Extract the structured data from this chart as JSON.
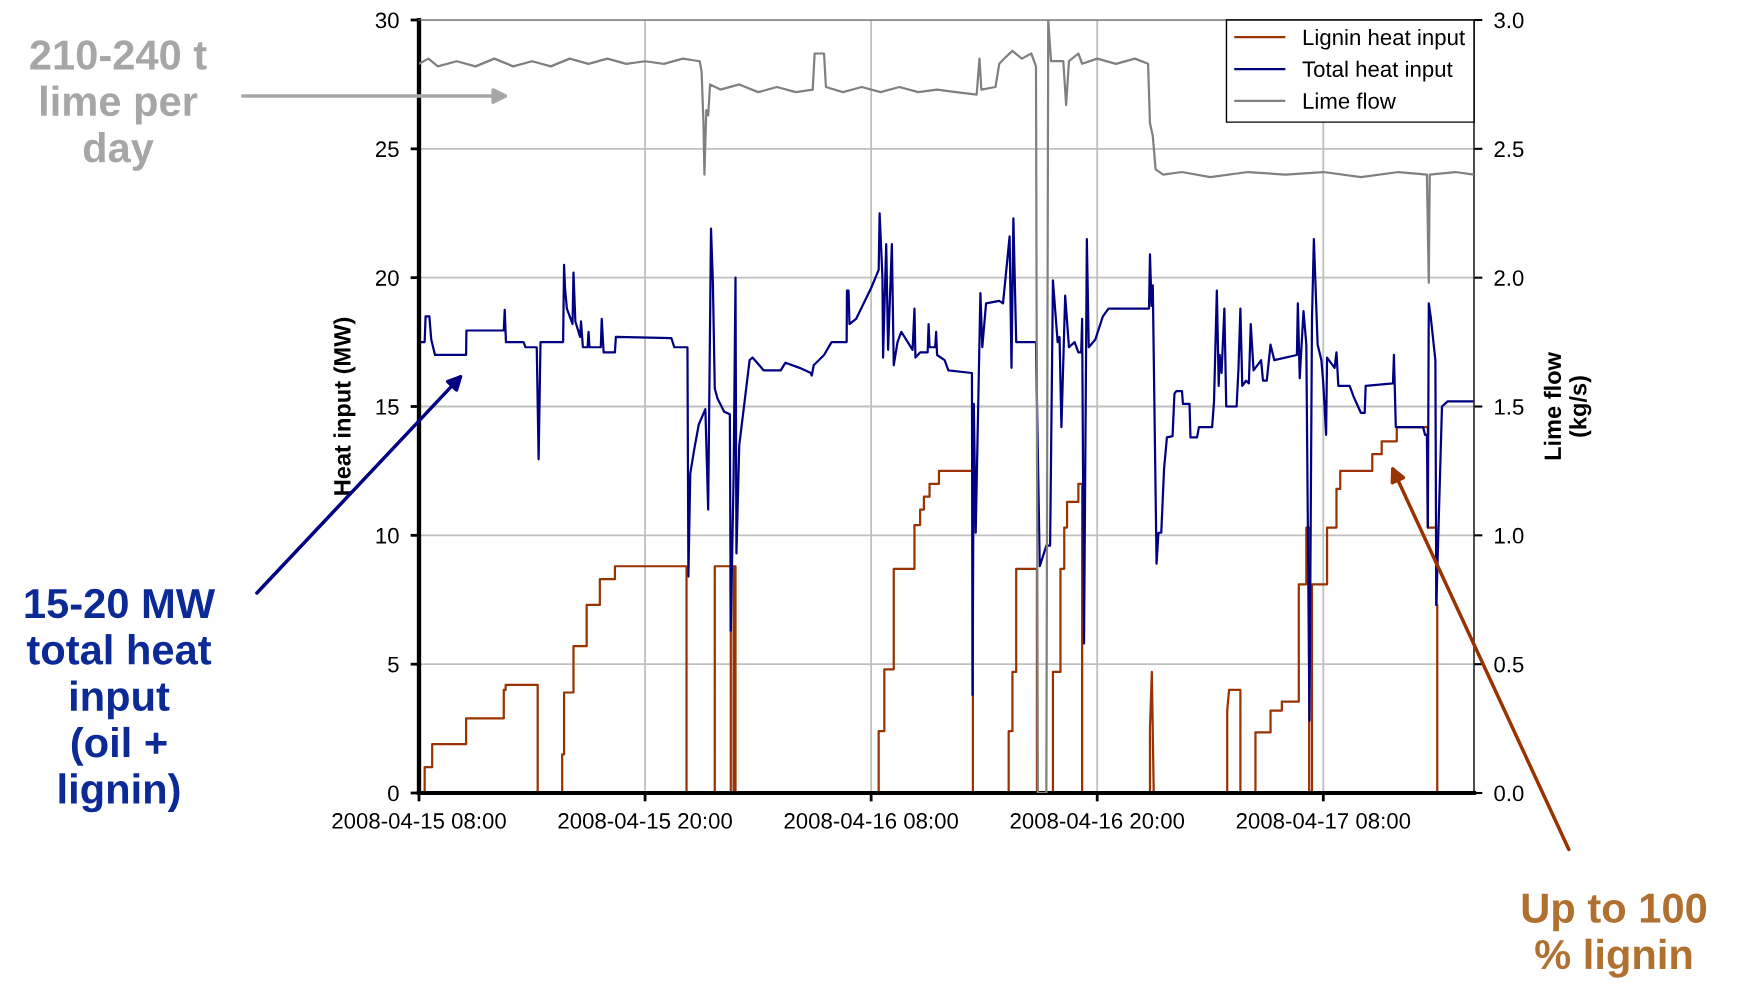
{
  "chart_data": {
    "type": "line",
    "ylabel": "Heat input (MW)",
    "y2label": "Lime flow\n(kg/s)",
    "xlim": [
      "2008-04-15T08:00",
      "2008-04-17T16:00"
    ],
    "xticks": [
      {
        "value": "2008-04-15T08:00",
        "label": "2008-04-15 08:00"
      },
      {
        "value": "2008-04-15T20:00",
        "label": "2008-04-15 20:00"
      },
      {
        "value": "2008-04-16T08:00",
        "label": "2008-04-16 08:00"
      },
      {
        "value": "2008-04-16T20:00",
        "label": "2008-04-16 20:00"
      },
      {
        "value": "2008-04-17T08:00",
        "label": "2008-04-17 08:00"
      }
    ],
    "ylim": [
      0,
      30
    ],
    "yticks": [
      0,
      5,
      10,
      15,
      20,
      25,
      30
    ],
    "y2lim": [
      0,
      3
    ],
    "y2ticks": [
      {
        "value": 0,
        "label": "0.0"
      },
      {
        "value": 0.5,
        "label": "0.5"
      },
      {
        "value": 1,
        "label": "1.0"
      },
      {
        "value": 1.5,
        "label": "1.5"
      },
      {
        "value": 2,
        "label": "2.0"
      },
      {
        "value": 2.5,
        "label": "2.5"
      },
      {
        "value": 3,
        "label": "3.0"
      }
    ],
    "grid": true,
    "legend": "top right",
    "marker": "none",
    "line_style": "solid",
    "annotations": [
      "210-240 t\nlime per\nday",
      "15-20 MW\ntotal heat\ninput\n(oil +\nlignin)",
      "Up to 100\n% lignin"
    ],
    "series": [
      {
        "name": "Lignin heat input",
        "color": "#993300",
        "x": [
          "2008-04-15T08:00",
          "2008-04-15T08:18",
          "2008-04-15T08:18",
          "2008-04-15T08:42",
          "2008-04-15T08:42",
          "2008-04-15T10:30",
          "2008-04-15T10:30",
          "2008-04-15T12:30",
          "2008-04-15T12:30",
          "2008-04-15T12:36",
          "2008-04-15T12:36",
          "2008-04-15T14:18",
          "2008-04-15T14:18",
          "2008-04-15T15:36",
          "2008-04-15T15:36",
          "2008-04-15T15:42",
          "2008-04-15T15:42",
          "2008-04-15T16:12",
          "2008-04-15T16:12",
          "2008-04-15T16:54",
          "2008-04-15T16:54",
          "2008-04-15T17:36",
          "2008-04-15T17:36",
          "2008-04-15T18:24",
          "2008-04-15T18:24",
          "2008-04-15T22:12",
          "2008-04-15T22:12",
          "2008-04-15T23:42",
          "2008-04-15T23:42",
          "2008-04-16T00:33",
          "2008-04-16T00:33",
          "2008-04-16T00:42",
          "2008-04-16T00:42",
          "2008-04-16T00:48",
          "2008-04-16T00:48",
          "2008-04-16T08:24",
          "2008-04-16T08:24",
          "2008-04-16T08:42",
          "2008-04-16T08:42",
          "2008-04-16T09:12",
          "2008-04-16T09:12",
          "2008-04-16T10:18",
          "2008-04-16T10:18",
          "2008-04-16T10:36",
          "2008-04-16T10:36",
          "2008-04-16T10:48",
          "2008-04-16T10:48",
          "2008-04-16T11:06",
          "2008-04-16T11:06",
          "2008-04-16T11:36",
          "2008-04-16T11:36",
          "2008-04-16T13:24",
          "2008-04-16T13:24",
          "2008-04-16T15:18",
          "2008-04-16T15:18",
          "2008-04-16T15:30",
          "2008-04-16T15:30",
          "2008-04-16T15:42",
          "2008-04-16T15:42",
          "2008-04-16T16:48",
          "2008-04-16T16:48",
          "2008-04-16T17:39",
          "2008-04-16T17:39",
          "2008-04-16T18:03",
          "2008-04-16T18:03",
          "2008-04-16T18:15",
          "2008-04-16T18:15",
          "2008-04-16T18:24",
          "2008-04-16T18:24",
          "2008-04-16T19:00",
          "2008-04-16T19:00",
          "2008-04-16T19:12",
          "2008-04-16T19:12",
          "2008-04-16T22:48",
          "2008-04-16T22:48",
          "2008-04-16T22:54",
          "2008-04-16T23:00",
          "2008-04-17T02:54",
          "2008-04-17T02:54",
          "2008-04-17T03:00",
          "2008-04-17T03:36",
          "2008-04-17T03:36",
          "2008-04-17T04:24",
          "2008-04-17T04:24",
          "2008-04-17T05:12",
          "2008-04-17T05:12",
          "2008-04-17T05:48",
          "2008-04-17T05:48",
          "2008-04-17T06:42",
          "2008-04-17T06:42",
          "2008-04-17T07:06",
          "2008-04-17T07:06",
          "2008-04-17T07:15",
          "2008-04-17T07:15",
          "2008-04-17T07:24",
          "2008-04-17T07:24",
          "2008-04-17T08:12",
          "2008-04-17T08:12",
          "2008-04-17T08:42",
          "2008-04-17T08:42",
          "2008-04-17T08:54",
          "2008-04-17T08:54",
          "2008-04-17T10:36",
          "2008-04-17T10:36",
          "2008-04-17T11:06",
          "2008-04-17T11:06",
          "2008-04-17T11:54",
          "2008-04-17T11:54",
          "2008-04-17T13:33",
          "2008-04-17T13:33",
          "2008-04-17T14:00",
          "2008-04-17T14:00",
          "2008-04-17T14:03",
          "2008-04-17T14:03",
          "2008-04-17T16:00"
        ],
        "values": [
          0,
          0,
          1.0,
          1.0,
          1.9,
          1.9,
          2.9,
          2.9,
          4.0,
          4.0,
          4.2,
          4.2,
          0,
          0,
          1.5,
          1.5,
          3.9,
          3.9,
          5.7,
          5.7,
          7.3,
          7.3,
          8.3,
          8.3,
          8.8,
          8.8,
          0,
          0,
          8.8,
          8.8,
          0,
          0,
          8.8,
          8.8,
          0,
          0,
          2.4,
          2.4,
          4.8,
          4.8,
          8.7,
          8.7,
          10.4,
          10.4,
          11.0,
          11.0,
          11.5,
          11.5,
          12.0,
          12.0,
          12.5,
          12.5,
          0,
          0,
          2.4,
          2.4,
          4.7,
          4.7,
          8.7,
          8.7,
          0,
          0,
          4.7,
          4.7,
          8.7,
          8.7,
          10.3,
          10.3,
          11.3,
          11.3,
          12.0,
          12.0,
          0,
          0,
          2.5,
          4.7,
          0,
          0,
          3.2,
          4.0,
          4.0,
          0,
          0,
          2.35,
          2.35,
          3.2,
          3.2,
          3.55,
          3.55,
          8.1,
          8.1,
          10.3,
          10.3,
          0,
          0,
          8.1,
          8.1,
          10.3,
          10.3,
          11.8,
          11.8,
          12.5,
          12.5,
          13.15,
          13.15,
          13.65,
          13.65,
          14.2,
          14.2,
          10.3,
          10.3,
          7.3,
          7.3,
          0,
          0
        ]
      },
      {
        "name": "Total heat input",
        "color": "#000080",
        "x": [
          "2008-04-15T08:00",
          "2008-04-15T08:18",
          "2008-04-15T08:21",
          "2008-04-15T08:33",
          "2008-04-15T08:39",
          "2008-04-15T08:51",
          "2008-04-15T10:30",
          "2008-04-15T10:31",
          "2008-04-15T12:30",
          "2008-04-15T12:33",
          "2008-04-15T12:37",
          "2008-04-15T13:33",
          "2008-04-15T13:39",
          "2008-04-15T14:15",
          "2008-04-15T14:21",
          "2008-04-15T14:27",
          "2008-04-15T15:39",
          "2008-04-15T15:42",
          "2008-04-15T15:45",
          "2008-04-15T15:51",
          "2008-04-15T16:09",
          "2008-04-15T16:12",
          "2008-04-15T16:18",
          "2008-04-15T16:33",
          "2008-04-15T16:36",
          "2008-04-15T16:42",
          "2008-04-15T16:57",
          "2008-04-15T17:00",
          "2008-04-15T17:03",
          "2008-04-15T17:39",
          "2008-04-15T17:42",
          "2008-04-15T17:48",
          "2008-04-15T18:24",
          "2008-04-15T18:27",
          "2008-04-15T21:24",
          "2008-04-15T21:33",
          "2008-04-15T22:15",
          "2008-04-15T22:18",
          "2008-04-15T22:24",
          "2008-04-15T22:36",
          "2008-04-15T22:51",
          "2008-04-15T23:12",
          "2008-04-15T23:21",
          "2008-04-15T23:30",
          "2008-04-15T23:36",
          "2008-04-15T23:42",
          "2008-04-15T23:51",
          "2008-04-16T00:12",
          "2008-04-16T00:30",
          "2008-04-16T00:33",
          "2008-04-16T00:42",
          "2008-04-16T00:48",
          "2008-04-16T00:51",
          "2008-04-16T01:00",
          "2008-04-16T01:18",
          "2008-04-16T01:33",
          "2008-04-16T01:42",
          "2008-04-16T01:57",
          "2008-04-16T02:18",
          "2008-04-16T03:12",
          "2008-04-16T03:27",
          "2008-04-16T04:12",
          "2008-04-16T04:48",
          "2008-04-16T04:51",
          "2008-04-16T04:57",
          "2008-04-16T05:30",
          "2008-04-16T05:54",
          "2008-04-16T06:42",
          "2008-04-16T06:43",
          "2008-04-16T06:48",
          "2008-04-16T06:51",
          "2008-04-16T07:12",
          "2008-04-16T07:36",
          "2008-04-16T08:00",
          "2008-04-16T08:24",
          "2008-04-16T08:27",
          "2008-04-16T08:36",
          "2008-04-16T08:38",
          "2008-04-16T08:48",
          "2008-04-16T08:54",
          "2008-04-16T09:06",
          "2008-04-16T09:12",
          "2008-04-16T09:24",
          "2008-04-16T09:36",
          "2008-04-16T10:12",
          "2008-04-16T10:18",
          "2008-04-16T10:21",
          "2008-04-16T10:36",
          "2008-04-16T11:00",
          "2008-04-16T11:03",
          "2008-04-16T11:06",
          "2008-04-16T11:24",
          "2008-04-16T11:27",
          "2008-04-16T11:30",
          "2008-04-16T11:54",
          "2008-04-16T12:06",
          "2008-04-16T13:21",
          "2008-04-16T13:23",
          "2008-04-16T13:27",
          "2008-04-16T13:33",
          "2008-04-16T13:48",
          "2008-04-16T13:54",
          "2008-04-16T14:06",
          "2008-04-16T14:48",
          "2008-04-16T15:00",
          "2008-04-16T15:21",
          "2008-04-16T15:27",
          "2008-04-16T15:33",
          "2008-04-16T15:42",
          "2008-04-16T16:45",
          "2008-04-16T16:57",
          "2008-04-16T17:18",
          "2008-04-16T17:30",
          "2008-04-16T17:39",
          "2008-04-16T17:42",
          "2008-04-16T17:54",
          "2008-04-16T18:00",
          "2008-04-16T18:06",
          "2008-04-16T18:18",
          "2008-04-16T18:30",
          "2008-04-16T18:48",
          "2008-04-16T19:00",
          "2008-04-16T19:09",
          "2008-04-16T19:12",
          "2008-04-16T19:18",
          "2008-04-16T19:27",
          "2008-04-16T19:33",
          "2008-04-16T19:54",
          "2008-04-16T20:18",
          "2008-04-16T20:36",
          "2008-04-16T22:45",
          "2008-04-16T22:48",
          "2008-04-16T22:53",
          "2008-04-16T22:57",
          "2008-04-16T23:09",
          "2008-04-16T23:15",
          "2008-04-16T23:24",
          "2008-04-16T23:33",
          "2008-04-16T23:42",
          "2008-04-17T00:00",
          "2008-04-17T00:06",
          "2008-04-17T00:12",
          "2008-04-17T00:30",
          "2008-04-17T00:33",
          "2008-04-17T00:54",
          "2008-04-17T00:57",
          "2008-04-17T01:18",
          "2008-04-17T01:24",
          "2008-04-17T02:06",
          "2008-04-17T02:12",
          "2008-04-17T02:21",
          "2008-04-17T02:27",
          "2008-04-17T02:30",
          "2008-04-17T02:36",
          "2008-04-17T02:45",
          "2008-04-17T02:51",
          "2008-04-17T03:24",
          "2008-04-17T03:30",
          "2008-04-17T03:36",
          "2008-04-17T03:42",
          "2008-04-17T03:54",
          "2008-04-17T04:03",
          "2008-04-17T04:09",
          "2008-04-17T04:18",
          "2008-04-17T04:42",
          "2008-04-17T04:48",
          "2008-04-17T05:00",
          "2008-04-17T05:12",
          "2008-04-17T05:24",
          "2008-04-17T06:36",
          "2008-04-17T06:39",
          "2008-04-17T06:45",
          "2008-04-17T06:57",
          "2008-04-17T07:06",
          "2008-04-17T07:16",
          "2008-04-17T07:24",
          "2008-04-17T07:30",
          "2008-04-17T07:42",
          "2008-04-17T07:54",
          "2008-04-17T08:00",
          "2008-04-17T08:09",
          "2008-04-17T08:12",
          "2008-04-17T08:36",
          "2008-04-17T08:42",
          "2008-04-17T08:48",
          "2008-04-17T09:24",
          "2008-04-17T09:36",
          "2008-04-17T10:00",
          "2008-04-17T10:12",
          "2008-04-17T10:15",
          "2008-04-17T11:42",
          "2008-04-17T11:45",
          "2008-04-17T11:51",
          "2008-04-17T13:18",
          "2008-04-17T13:24",
          "2008-04-17T13:30",
          "2008-04-17T13:33",
          "2008-04-17T13:36",
          "2008-04-17T13:42",
          "2008-04-17T13:57",
          "2008-04-17T14:00",
          "2008-04-17T14:18",
          "2008-04-17T14:36",
          "2008-04-17T16:00"
        ],
        "values": [
          17.5,
          17.5,
          18.5,
          18.5,
          17.6,
          17.0,
          17.0,
          17.95,
          17.95,
          18.75,
          17.5,
          17.5,
          17.3,
          17.3,
          12.95,
          17.5,
          17.5,
          20.5,
          19.6,
          18.8,
          18.2,
          20.2,
          18.3,
          17.7,
          18.3,
          17.3,
          17.3,
          17.9,
          17.3,
          17.3,
          18.4,
          17.1,
          17.1,
          17.7,
          17.65,
          17.3,
          17.3,
          8.4,
          12.4,
          13.3,
          14.3,
          14.9,
          11.0,
          21.9,
          19.8,
          15.7,
          15.3,
          14.8,
          14.7,
          6.3,
          12.3,
          20.0,
          9.3,
          13.5,
          15.3,
          16.8,
          16.9,
          16.7,
          16.4,
          16.4,
          16.7,
          16.5,
          16.3,
          16.2,
          16.6,
          17.0,
          17.5,
          17.5,
          19.5,
          19.5,
          18.2,
          18.4,
          19.0,
          19.6,
          20.3,
          22.5,
          20.0,
          16.9,
          21.3,
          17.2,
          21.3,
          16.6,
          17.5,
          17.9,
          17.2,
          18.8,
          16.9,
          17.1,
          17.1,
          18.2,
          17.3,
          17.3,
          17.9,
          17.0,
          16.8,
          16.4,
          16.3,
          3.8,
          15.1,
          10.1,
          19.4,
          17.3,
          19.0,
          19.1,
          19.0,
          21.6,
          16.5,
          22.3,
          17.5,
          17.5,
          8.8,
          9.6,
          9.6,
          19.9,
          19.4,
          17.5,
          17.7,
          14.2,
          19.3,
          17.3,
          17.5,
          17.1,
          17.1,
          18.4,
          5.8,
          21.5,
          17.3,
          17.6,
          18.5,
          18.8,
          18.8,
          20.9,
          18.9,
          19.7,
          8.9,
          10.1,
          10.1,
          12.6,
          13.8,
          13.85,
          15.5,
          15.6,
          15.6,
          15.1,
          15.1,
          13.8,
          13.8,
          14.2,
          14.2,
          15.2,
          19.5,
          15.8,
          17.0,
          16.3,
          18.8,
          15.0,
          15.0,
          16.5,
          18.8,
          15.8,
          16.0,
          15.9,
          18.2,
          16.4,
          16.8,
          16.0,
          16.0,
          17.4,
          16.8,
          17.0,
          19.0,
          16.1,
          18.7,
          17.4,
          2.8,
          18.4,
          21.5,
          17.4,
          16.8,
          15.9,
          13.9,
          16.9,
          16.5,
          17.1,
          15.8,
          15.8,
          15.4,
          14.75,
          14.75,
          15.8,
          15.9,
          17.0,
          14.2,
          14.2,
          13.9,
          13.9,
          10.3,
          19.0,
          18.5,
          16.8,
          7.3,
          15.0,
          15.2,
          15.2
        ]
      },
      {
        "name": "Lime flow",
        "color": "#808080",
        "axis": "y2",
        "x": [
          "2008-04-15T08:00",
          "2008-04-15T08:30",
          "2008-04-15T09:00",
          "2008-04-15T10:00",
          "2008-04-15T11:00",
          "2008-04-15T12:00",
          "2008-04-15T13:00",
          "2008-04-15T14:00",
          "2008-04-15T15:00",
          "2008-04-15T16:00",
          "2008-04-15T17:00",
          "2008-04-15T18:00",
          "2008-04-15T19:00",
          "2008-04-15T20:00",
          "2008-04-15T21:00",
          "2008-04-15T22:00",
          "2008-04-15T22:54",
          "2008-04-15T23:00",
          "2008-04-15T23:06",
          "2008-04-15T23:09",
          "2008-04-15T23:15",
          "2008-04-15T23:21",
          "2008-04-15T23:27",
          "2008-04-16T00:00",
          "2008-04-16T01:00",
          "2008-04-16T02:00",
          "2008-04-16T03:00",
          "2008-04-16T04:00",
          "2008-04-16T04:54",
          "2008-04-16T05:00",
          "2008-04-16T05:30",
          "2008-04-16T05:36",
          "2008-04-16T06:30",
          "2008-04-16T07:30",
          "2008-04-16T08:30",
          "2008-04-16T09:30",
          "2008-04-16T10:30",
          "2008-04-16T11:30",
          "2008-04-16T12:30",
          "2008-04-16T13:36",
          "2008-04-16T13:45",
          "2008-04-16T13:51",
          "2008-04-16T14:36",
          "2008-04-16T14:48",
          "2008-04-16T15:12",
          "2008-04-16T15:30",
          "2008-04-16T16:00",
          "2008-04-16T16:30",
          "2008-04-16T16:45",
          "2008-04-16T16:51",
          "2008-04-16T17:18",
          "2008-04-16T17:24",
          "2008-04-16T17:33",
          "2008-04-16T18:12",
          "2008-04-16T18:21",
          "2008-04-16T18:30",
          "2008-04-16T19:00",
          "2008-04-16T19:12",
          "2008-04-16T20:00",
          "2008-04-16T21:00",
          "2008-04-16T22:00",
          "2008-04-16T22:42",
          "2008-04-16T22:48",
          "2008-04-16T22:57",
          "2008-04-16T23:06",
          "2008-04-16T23:30",
          "2008-04-17T00:30",
          "2008-04-17T02:00",
          "2008-04-17T04:00",
          "2008-04-17T06:00",
          "2008-04-17T08:00",
          "2008-04-17T10:00",
          "2008-04-17T12:00",
          "2008-04-17T13:30",
          "2008-04-17T13:36",
          "2008-04-17T13:39",
          "2008-04-17T15:00",
          "2008-04-17T16:00"
        ],
        "values": [
          2.83,
          2.85,
          2.82,
          2.84,
          2.82,
          2.85,
          2.82,
          2.84,
          2.82,
          2.85,
          2.83,
          2.85,
          2.83,
          2.84,
          2.83,
          2.85,
          2.84,
          2.8,
          2.6,
          2.4,
          2.65,
          2.63,
          2.75,
          2.73,
          2.75,
          2.72,
          2.74,
          2.72,
          2.73,
          2.87,
          2.87,
          2.74,
          2.72,
          2.74,
          2.72,
          2.74,
          2.72,
          2.73,
          2.72,
          2.71,
          2.85,
          2.73,
          2.74,
          2.83,
          2.86,
          2.88,
          2.85,
          2.87,
          2.82,
          0.0,
          0.0,
          3.0,
          2.84,
          2.84,
          2.67,
          2.84,
          2.87,
          2.83,
          2.85,
          2.83,
          2.85,
          2.83,
          2.6,
          2.55,
          2.42,
          2.4,
          2.41,
          2.39,
          2.41,
          2.4,
          2.41,
          2.39,
          2.41,
          2.4,
          1.98,
          2.4,
          2.41,
          2.4
        ]
      }
    ]
  }
}
